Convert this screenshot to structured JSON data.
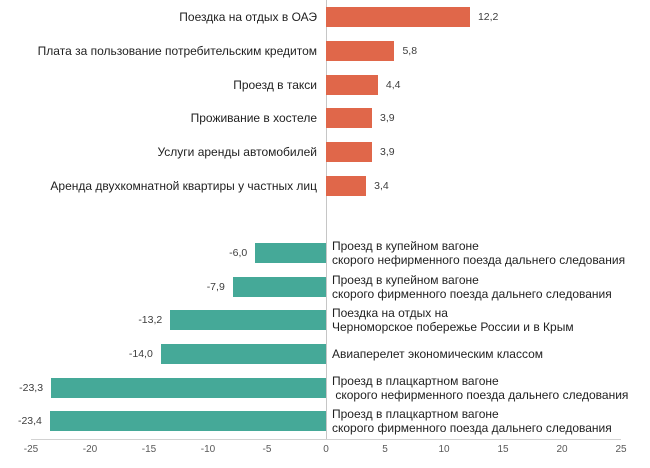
{
  "chart_data": {
    "type": "bar",
    "orientation": "horizontal",
    "title": "",
    "xlabel": "",
    "ylabel": "",
    "xlim": [
      -25,
      25
    ],
    "x_ticks": [
      "-25",
      "-20",
      "-15",
      "-10",
      "-5",
      "0",
      "5",
      "10",
      "15",
      "20",
      "25"
    ],
    "grid": false,
    "legend": "none",
    "positive_color": "#e0674a",
    "negative_color": "#45a998",
    "bars": [
      {
        "lines": [
          "Поездка на отдых в ОАЭ"
        ],
        "value": 12.2,
        "value_label": "12,2"
      },
      {
        "lines": [
          "Плата за пользование потребительским кредитом"
        ],
        "value": 5.8,
        "value_label": "5,8"
      },
      {
        "lines": [
          "Проезд в такси"
        ],
        "value": 4.4,
        "value_label": "4,4"
      },
      {
        "lines": [
          "Проживание в хостеле"
        ],
        "value": 3.9,
        "value_label": "3,9"
      },
      {
        "lines": [
          "Услуги аренды автомобилей"
        ],
        "value": 3.9,
        "value_label": "3,9"
      },
      {
        "lines": [
          "Аренда двухкомнатной квартиры у частных лиц"
        ],
        "value": 3.4,
        "value_label": "3,4"
      },
      {
        "lines": [
          "Проезд в купейном вагоне",
          "скорого нефирменного поезда дальнего следования"
        ],
        "value": -6.0,
        "value_label": "-6,0"
      },
      {
        "lines": [
          "Проезд в купейном вагоне",
          "скорого фирменного поезда дальнего следования"
        ],
        "value": -7.9,
        "value_label": "-7,9"
      },
      {
        "lines": [
          "Поездка на отдых на",
          "Черноморское побережье России и в Крым"
        ],
        "value": -13.2,
        "value_label": "-13,2"
      },
      {
        "lines": [
          "Авиаперелет экономическим классом"
        ],
        "value": -14.0,
        "value_label": "-14,0"
      },
      {
        "lines": [
          "Проезд в плацкартном вагоне",
          " скорого нефирменного поезда дальнего следования"
        ],
        "value": -23.3,
        "value_label": "-23,3"
      },
      {
        "lines": [
          "Проезд в плацкартном вагоне",
          "скорого фирменного поезда дальнего следования"
        ],
        "value": -23.4,
        "value_label": "-23,4"
      }
    ]
  }
}
